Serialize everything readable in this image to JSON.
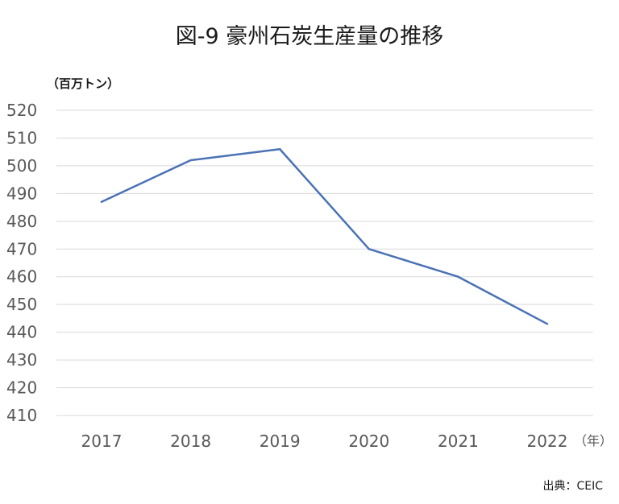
{
  "chart_data": {
    "type": "line",
    "title": "図-9 豪州石炭生産量の推移",
    "ylabel": "（百万トン）",
    "xlabel": "（年）",
    "source": "出典：CEIC",
    "categories": [
      "2017",
      "2018",
      "2019",
      "2020",
      "2021",
      "2022"
    ],
    "series": [
      {
        "values": [
          487,
          502,
          506,
          470,
          460,
          443
        ]
      }
    ],
    "ylim": [
      410,
      520
    ],
    "yticks": [
      520,
      510,
      500,
      490,
      480,
      470,
      460,
      450,
      440,
      430,
      420,
      410
    ],
    "grid": true,
    "legend": "none",
    "colors": {
      "series": "#4a72b5",
      "grid": "#d9d9d9",
      "ticks": "#595959"
    }
  }
}
